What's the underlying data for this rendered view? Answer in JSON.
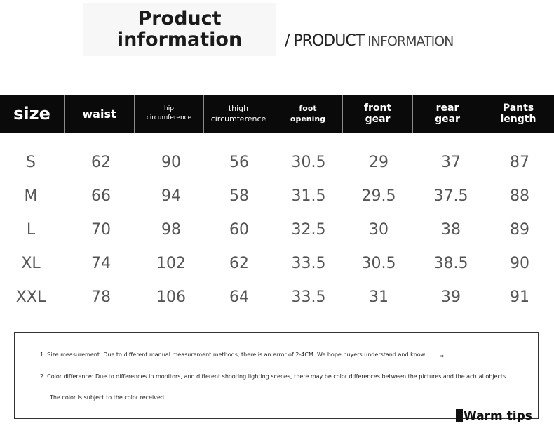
{
  "title": {
    "line1": "Product",
    "line2": "information",
    "subtitle_prefix": "/ PRODUCT",
    "subtitle_suffix": " INFORMATION"
  },
  "table": {
    "headers": [
      {
        "lines": [
          "size"
        ]
      },
      {
        "lines": [
          "waist"
        ]
      },
      {
        "lines": [
          "hip",
          "circumference"
        ]
      },
      {
        "lines": [
          "thigh",
          "circumference"
        ]
      },
      {
        "lines": [
          "foot",
          "opening"
        ]
      },
      {
        "lines": [
          "front",
          "gear"
        ]
      },
      {
        "lines": [
          "rear",
          "gear"
        ]
      },
      {
        "lines": [
          "Pants",
          "length"
        ]
      }
    ],
    "rows": [
      [
        "S",
        "62",
        "90",
        "56",
        "30.5",
        "29",
        "37",
        "87"
      ],
      [
        "M",
        "66",
        "94",
        "58",
        "31.5",
        "29.5",
        "37.5",
        "88"
      ],
      [
        "L",
        "70",
        "98",
        "60",
        "32.5",
        "30",
        "38",
        "89"
      ],
      [
        "XL",
        "74",
        "102",
        "62",
        "33.5",
        "30.5",
        "38.5",
        "90"
      ],
      [
        "XXL",
        "78",
        "106",
        "64",
        "33.5",
        "31",
        "39",
        "91"
      ]
    ]
  },
  "tips": {
    "items": [
      "1. Size measurement: Due to different manual measurement methods, there is an error of 2-4CM. We hope buyers understand and know.",
      "2. Color difference: Due to differences in monitors, and different shooting lighting scenes, there may be color differences between the pictures and the actual objects.",
      "The color is subject to the color received."
    ],
    "label": "Warm tips"
  },
  "colors": {
    "header_bg": "#0a0a0a",
    "header_text": "#ffffff",
    "cell_text": "#555555"
  }
}
